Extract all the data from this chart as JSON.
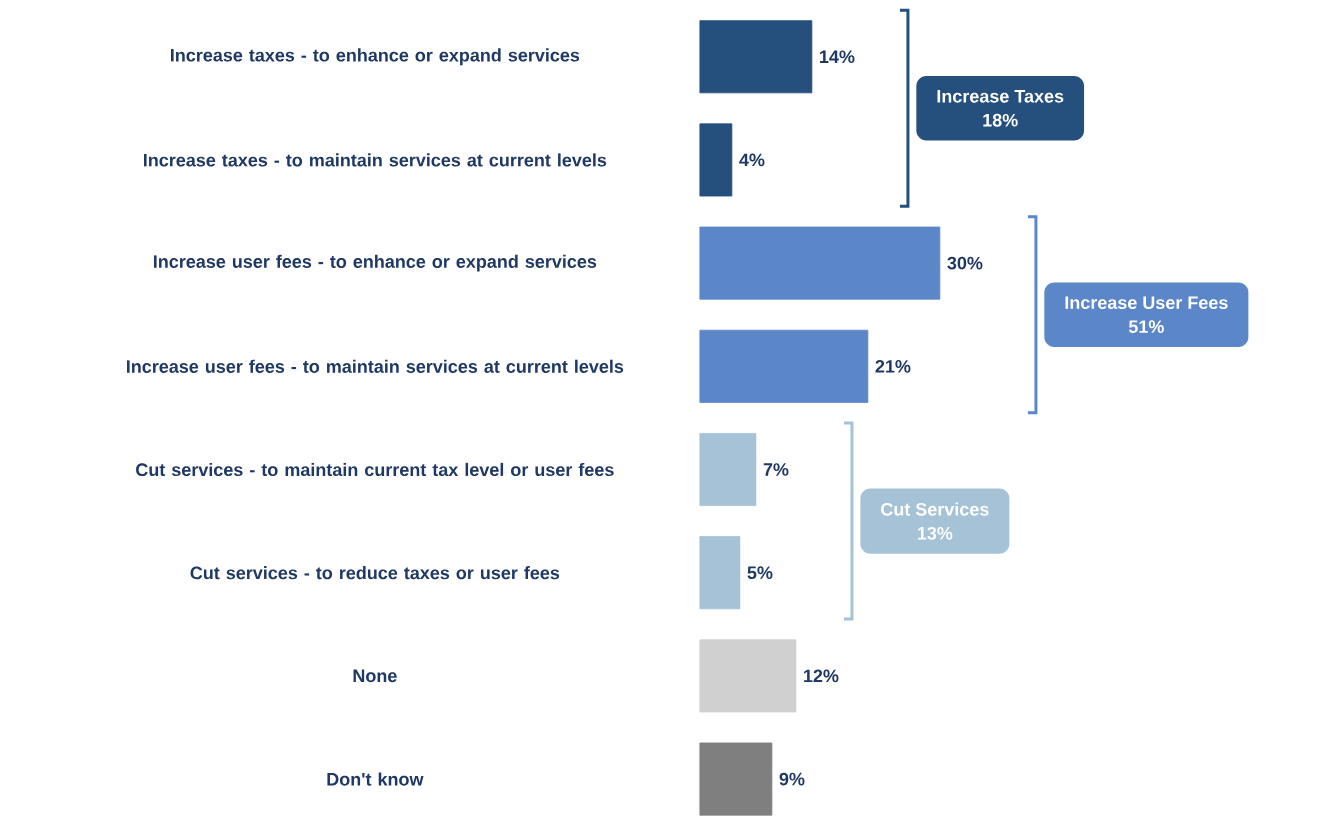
{
  "chart_data": {
    "type": "bar",
    "orientation": "horizontal",
    "categories": [
      "Increase taxes - to enhance or expand services",
      "Increase taxes - to maintain services at current levels",
      "Increase user fees - to enhance or expand services",
      "Increase user fees - to maintain services at current levels",
      "Cut services - to maintain current tax level or user fees",
      "Cut services - to reduce taxes or user fees",
      "None",
      "Don't know"
    ],
    "values": [
      14,
      4,
      30,
      21,
      7,
      5,
      12,
      9
    ],
    "colors": [
      "#254f7c",
      "#254f7c",
      "#5b87c9",
      "#5b87c9",
      "#a5c2d6",
      "#a5c2d6",
      "#d0d0d0",
      "#7f7f7f"
    ],
    "value_labels": [
      "14%",
      "4%",
      "30%",
      "21%",
      "7%",
      "5%",
      "12%",
      "9%"
    ],
    "annotations": [
      "Increase Taxes",
      "18%",
      "Increase User Fees",
      "51%",
      "Cut Services",
      "13%"
    ]
  }
}
